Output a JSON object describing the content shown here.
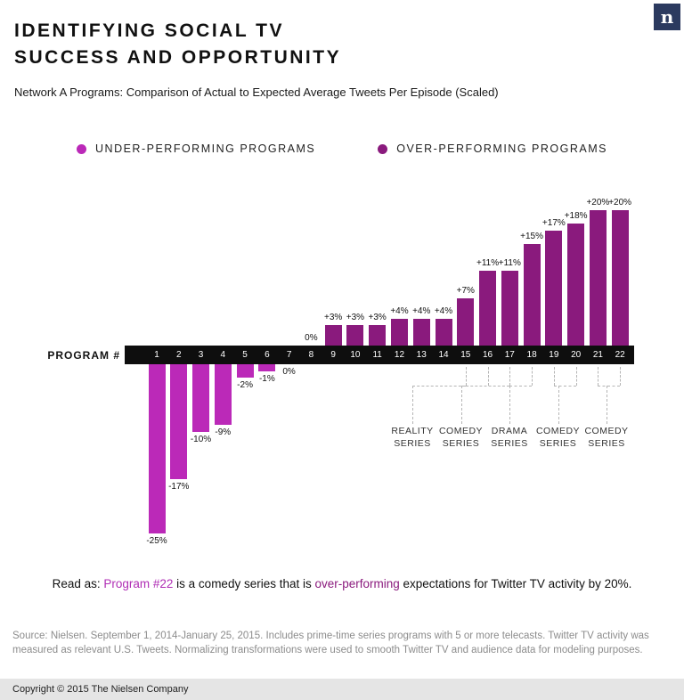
{
  "logo": {
    "letter": "n",
    "bg_color": "#2b3a5f"
  },
  "header": {
    "title_line1": "IDENTIFYING SOCIAL TV",
    "title_line2": "SUCCESS AND OPPORTUNITY",
    "subtitle": "Network A Programs: Comparison of Actual to Expected Average Tweets Per Episode (Scaled)"
  },
  "legend": {
    "under_label": "UNDER-PERFORMING PROGRAMS",
    "over_label": "OVER-PERFORMING PROGRAMS"
  },
  "colors": {
    "under": "#bb29b8",
    "over": "#8a1a7d",
    "axis": "#0e0e0e"
  },
  "chart_data": {
    "type": "bar",
    "title": "Network A Programs: Comparison of Actual to Expected Average Tweets Per Episode (Scaled)",
    "xlabel": "PROGRAM #",
    "ylabel": "",
    "categories": [
      "1",
      "2",
      "3",
      "4",
      "5",
      "6",
      "7",
      "8",
      "9",
      "10",
      "11",
      "12",
      "13",
      "14",
      "15",
      "16",
      "17",
      "18",
      "19",
      "20",
      "21",
      "22"
    ],
    "values": [
      -25,
      -17,
      -10,
      -9,
      -2,
      -1,
      0,
      0,
      3,
      3,
      3,
      4,
      4,
      4,
      7,
      11,
      11,
      15,
      17,
      18,
      20,
      20
    ],
    "labels": [
      "-25%",
      "-17%",
      "-10%",
      "-9%",
      "-2%",
      "-1%",
      "0%",
      "0%",
      "+3%",
      "+3%",
      "+3%",
      "+4%",
      "+4%",
      "+4%",
      "+7%",
      "+11%",
      "+11%",
      "+15%",
      "+17%",
      "+18%",
      "+20%",
      "+20%"
    ],
    "bar_types": [
      "under",
      "under",
      "under",
      "under",
      "under",
      "under",
      "under",
      "over",
      "over",
      "over",
      "over",
      "over",
      "over",
      "over",
      "over",
      "over",
      "over",
      "over",
      "over",
      "over",
      "over",
      "over"
    ],
    "ylim": [
      -25,
      20
    ],
    "grid": false,
    "legend_position": "top"
  },
  "callouts": [
    {
      "line1": "REALITY",
      "line2": "SERIES",
      "programs": [
        15
      ]
    },
    {
      "line1": "COMEDY",
      "line2": "SERIES",
      "programs": [
        16,
        17
      ]
    },
    {
      "line1": "DRAMA",
      "line2": "SERIES",
      "programs": [
        18
      ]
    },
    {
      "line1": "COMEDY",
      "line2": "SERIES",
      "programs": [
        19,
        20
      ]
    },
    {
      "line1": "COMEDY",
      "line2": "SERIES",
      "programs": [
        21,
        22
      ]
    }
  ],
  "read_as": {
    "prefix": "Read as: ",
    "program": "Program #22",
    "middle": " is a comedy series that is ",
    "highlight": "over-performing",
    "suffix": " expectations for Twitter TV activity by 20%."
  },
  "source_text": "Source: Nielsen. September 1, 2014-January 25, 2015. Includes prime-time series programs with 5 or more telecasts. Twitter TV activity was measured as relevant U.S. Tweets. Normalizing transformations were used to smooth Twitter TV and audience data for modeling purposes.",
  "footer": {
    "copyright_text": "Copyright © 2015 The Nielsen Company"
  }
}
